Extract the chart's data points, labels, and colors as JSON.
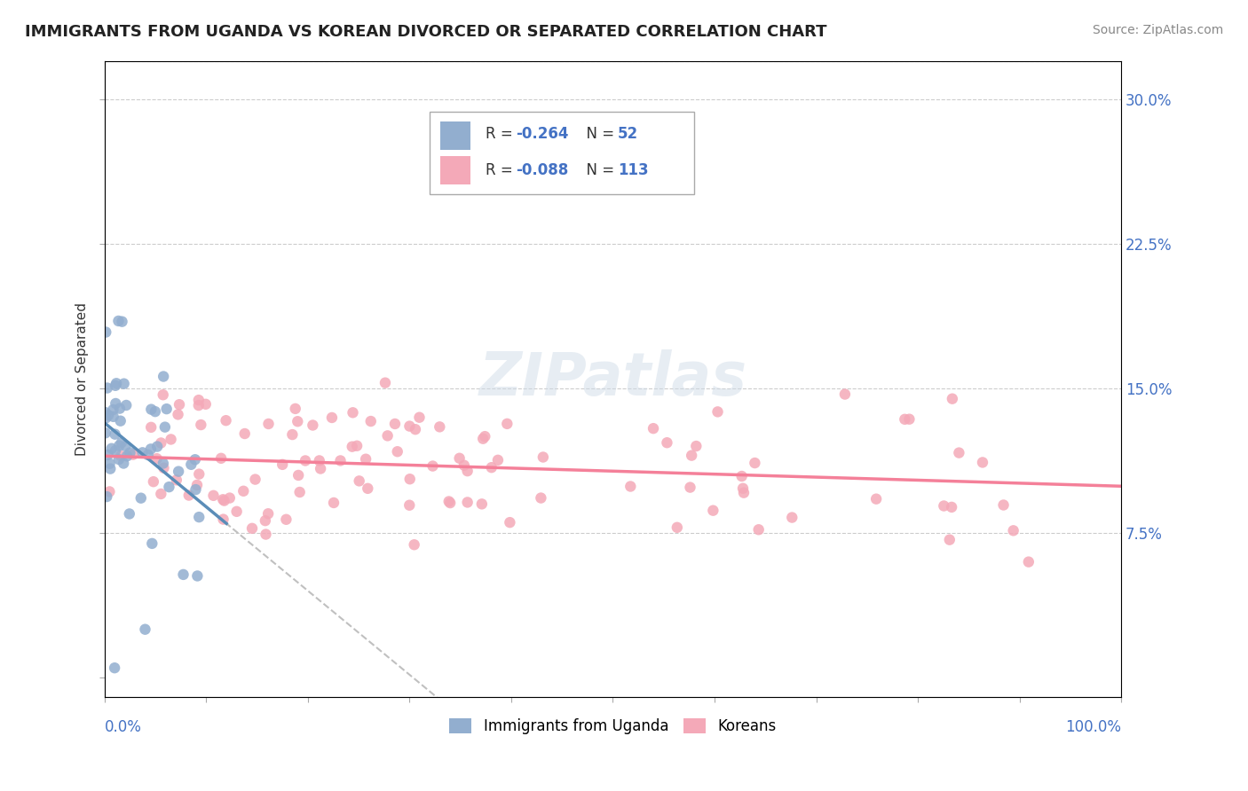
{
  "title": "IMMIGRANTS FROM UGANDA VS KOREAN DIVORCED OR SEPARATED CORRELATION CHART",
  "source": "Source: ZipAtlas.com",
  "ylabel": "Divorced or Separated",
  "ytick_values": [
    0.0,
    0.075,
    0.15,
    0.225,
    0.3
  ],
  "ytick_labels": [
    "",
    "7.5%",
    "15.0%",
    "22.5%",
    "30.0%"
  ],
  "xlim": [
    0.0,
    1.0
  ],
  "ylim": [
    -0.01,
    0.32
  ],
  "color_uganda": "#92AECF",
  "color_korean": "#F4A9B8",
  "color_uganda_line": "#5B8DB8",
  "color_korean_line": "#F48099",
  "color_dashed": "#C0C0C0",
  "background_color": "#FFFFFF"
}
